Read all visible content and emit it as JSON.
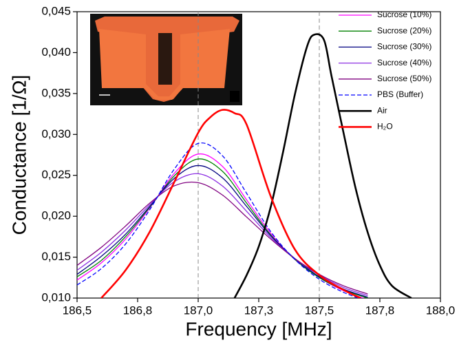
{
  "chart_data": {
    "type": "line",
    "xlabel": "Frequency [MHz]",
    "ylabel": "Conductance [1/Ω]",
    "xlim": [
      186.5,
      188.0
    ],
    "xticks": [
      {
        "value": 186.5,
        "label": "186,5"
      },
      {
        "value": 186.75,
        "label": "186,8"
      },
      {
        "value": 187.0,
        "label": "187,0"
      },
      {
        "value": 187.25,
        "label": "187,3"
      },
      {
        "value": 187.5,
        "label": "187,5"
      },
      {
        "value": 187.75,
        "label": "187,8"
      },
      {
        "value": 188.0,
        "label": "188,0"
      }
    ],
    "ylim": [
      0.01,
      0.045
    ],
    "yticks": [
      {
        "value": 0.01,
        "label": "0,010"
      },
      {
        "value": 0.015,
        "label": "0,015"
      },
      {
        "value": 0.02,
        "label": "0,020"
      },
      {
        "value": 0.025,
        "label": "0,025"
      },
      {
        "value": 0.03,
        "label": "0,030"
      },
      {
        "value": 0.035,
        "label": "0,035"
      },
      {
        "value": 0.04,
        "label": "0,040"
      },
      {
        "value": 0.045,
        "label": "0,045"
      }
    ],
    "vlines": [
      187.0,
      187.5
    ],
    "legend": "upper right",
    "series": [
      {
        "name": "Sucrose (10%)",
        "color": "#ff00ff",
        "x": [
          186.5,
          186.6,
          186.7,
          186.8,
          186.9,
          187.0,
          187.1,
          187.2,
          187.3,
          187.4,
          187.5,
          187.6,
          187.7
        ],
        "values": [
          0.0122,
          0.0143,
          0.0172,
          0.021,
          0.0252,
          0.0276,
          0.0261,
          0.022,
          0.0179,
          0.0147,
          0.0125,
          0.0109,
          0.0098
        ]
      },
      {
        "name": "Sucrose (20%)",
        "color": "#008000",
        "x": [
          186.5,
          186.6,
          186.7,
          186.8,
          186.9,
          187.0,
          187.1,
          187.2,
          187.3,
          187.4,
          187.5,
          187.6,
          187.7
        ],
        "values": [
          0.0126,
          0.0146,
          0.0175,
          0.0211,
          0.0249,
          0.027,
          0.0255,
          0.0216,
          0.0177,
          0.0147,
          0.0125,
          0.011,
          0.01
        ]
      },
      {
        "name": "Sucrose (30%)",
        "color": "#000080",
        "x": [
          186.5,
          186.6,
          186.7,
          186.8,
          186.9,
          187.0,
          187.1,
          187.2,
          187.3,
          187.4,
          187.5,
          187.6,
          187.7
        ],
        "values": [
          0.0129,
          0.0151,
          0.0178,
          0.0212,
          0.0246,
          0.0262,
          0.0247,
          0.0212,
          0.0176,
          0.0148,
          0.0126,
          0.0111,
          0.0101
        ]
      },
      {
        "name": "Sucrose (40%)",
        "color": "#8a2be2",
        "x": [
          186.5,
          186.6,
          186.7,
          186.8,
          186.9,
          187.0,
          187.1,
          187.2,
          187.3,
          187.4,
          187.5,
          187.6,
          187.7
        ],
        "values": [
          0.0134,
          0.0156,
          0.0183,
          0.0214,
          0.0242,
          0.0252,
          0.0237,
          0.0206,
          0.0174,
          0.0148,
          0.0128,
          0.0113,
          0.0103
        ]
      },
      {
        "name": "Sucrose (50%)",
        "color": "#800080",
        "x": [
          186.5,
          186.6,
          186.7,
          186.8,
          186.9,
          187.0,
          187.1,
          187.2,
          187.3,
          187.4,
          187.5,
          187.6,
          187.7
        ],
        "values": [
          0.014,
          0.0162,
          0.0188,
          0.0216,
          0.0237,
          0.0241,
          0.0226,
          0.0199,
          0.0172,
          0.0148,
          0.0129,
          0.0115,
          0.0105
        ]
      },
      {
        "name": "PBS (Buffer)",
        "color": "#0000ff",
        "dash": true,
        "x": [
          186.5,
          186.6,
          186.7,
          186.8,
          186.9,
          187.0,
          187.1,
          187.2,
          187.3,
          187.4,
          187.5,
          187.6,
          187.7
        ],
        "values": [
          0.0116,
          0.0136,
          0.0166,
          0.0208,
          0.0257,
          0.0289,
          0.0274,
          0.0228,
          0.0181,
          0.0147,
          0.0123,
          0.0107,
          0.0096
        ]
      },
      {
        "name": "Air",
        "color": "#000000",
        "bold": true,
        "x": [
          187.15,
          187.2,
          187.25,
          187.3,
          187.35,
          187.4,
          187.45,
          187.48,
          187.52,
          187.55,
          187.6,
          187.65,
          187.7,
          187.75,
          187.8,
          187.88
        ],
        "values": [
          0.01,
          0.0128,
          0.0163,
          0.0212,
          0.0278,
          0.035,
          0.0408,
          0.0422,
          0.0415,
          0.0372,
          0.0302,
          0.0234,
          0.018,
          0.014,
          0.0115,
          0.01
        ]
      },
      {
        "name": "H₂O",
        "color": "#ff0000",
        "bold": true,
        "x": [
          186.6,
          186.7,
          186.8,
          186.9,
          187.0,
          187.05,
          187.1,
          187.15,
          187.2,
          187.3,
          187.4,
          187.5,
          187.6,
          187.67
        ],
        "values": [
          0.01,
          0.0134,
          0.0181,
          0.0241,
          0.0302,
          0.0321,
          0.033,
          0.0326,
          0.0312,
          0.0224,
          0.0159,
          0.0128,
          0.011,
          0.01
        ]
      }
    ]
  }
}
